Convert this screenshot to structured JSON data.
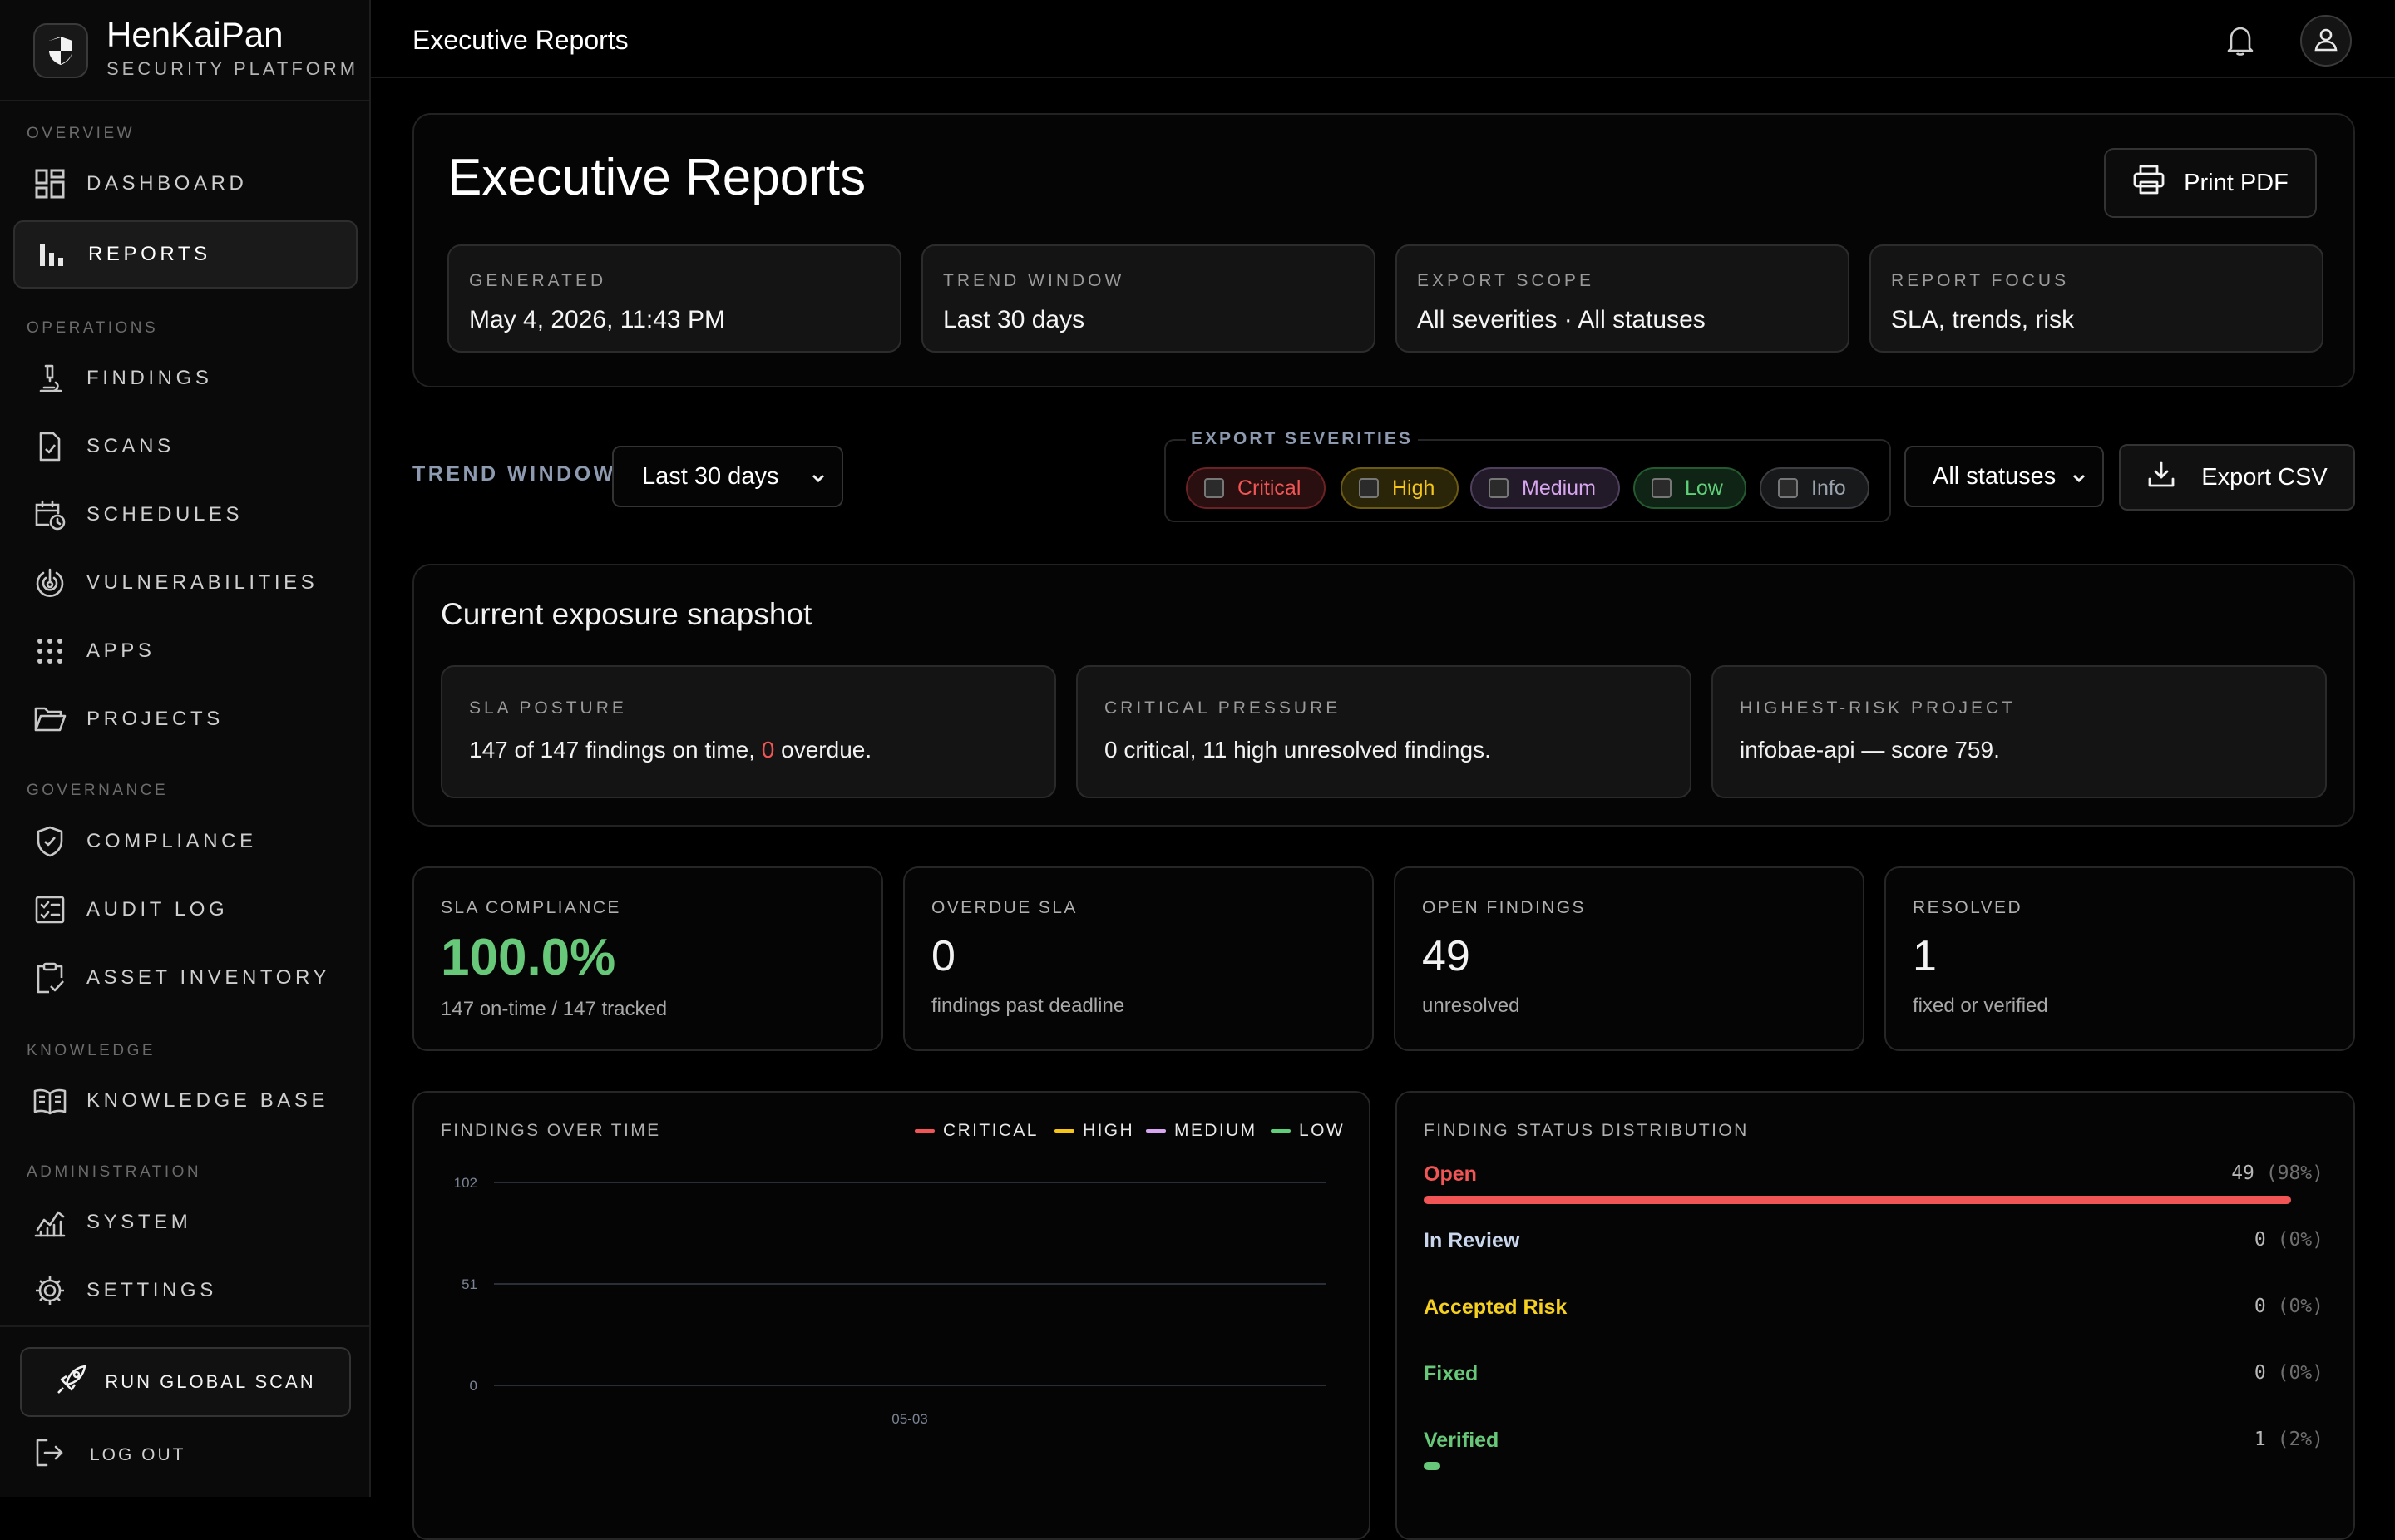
{
  "app": {
    "brand_name": "HenKaiPan",
    "brand_sub": "SECURITY PLATFORM",
    "page_title": "Executive Reports"
  },
  "sidebar": {
    "sections": {
      "overview": "OVERVIEW",
      "operations": "OPERATIONS",
      "governance": "GOVERNANCE",
      "knowledge": "KNOWLEDGE",
      "administration": "ADMINISTRATION"
    },
    "items": [
      {
        "label": "DASHBOARD",
        "icon": "grid-icon"
      },
      {
        "label": "REPORTS",
        "icon": "bar-chart-icon",
        "active": true
      },
      {
        "label": "FINDINGS",
        "icon": "microscope-icon"
      },
      {
        "label": "SCANS",
        "icon": "file-check-icon"
      },
      {
        "label": "SCHEDULES",
        "icon": "calendar-clock-icon"
      },
      {
        "label": "VULNERABILITIES",
        "icon": "radar-icon"
      },
      {
        "label": "APPS",
        "icon": "dots-grid-icon"
      },
      {
        "label": "PROJECTS",
        "icon": "folder-icon"
      },
      {
        "label": "COMPLIANCE",
        "icon": "shield-check-icon"
      },
      {
        "label": "AUDIT LOG",
        "icon": "checklist-icon"
      },
      {
        "label": "ASSET INVENTORY",
        "icon": "clipboard-check-icon"
      },
      {
        "label": "KNOWLEDGE BASE",
        "icon": "book-icon"
      },
      {
        "label": "SYSTEM",
        "icon": "activity-chart-icon"
      },
      {
        "label": "SETTINGS",
        "icon": "gear-icon"
      }
    ],
    "run_scan": "RUN GLOBAL SCAN",
    "logout": "LOG OUT"
  },
  "report": {
    "title": "Executive Reports",
    "print_label": "Print PDF",
    "meta": [
      {
        "label": "GENERATED",
        "value": "May 4, 2026, 11:43 PM"
      },
      {
        "label": "TREND WINDOW",
        "value": "Last 30 days"
      },
      {
        "label": "EXPORT SCOPE",
        "value": "All severities · All statuses"
      },
      {
        "label": "REPORT FOCUS",
        "value": "SLA, trends, risk"
      }
    ]
  },
  "controls": {
    "trend_label": "TREND WINDOW",
    "trend_value": "Last 30 days",
    "severities_label": "EXPORT SEVERITIES",
    "severities": [
      {
        "label": "Critical",
        "color": "#f25555",
        "checked": false
      },
      {
        "label": "High",
        "color": "#f5c518",
        "checked": false
      },
      {
        "label": "Medium",
        "color": "#d8a6f0",
        "checked": false
      },
      {
        "label": "Low",
        "color": "#5fd07a",
        "checked": false
      },
      {
        "label": "Info",
        "color": "#9aa3ad",
        "checked": false
      }
    ],
    "status_value": "All statuses",
    "export_label": "Export CSV"
  },
  "snapshot": {
    "title": "Current exposure snapshot",
    "sla": {
      "label": "SLA POSTURE",
      "pre": "147 of 147 findings on time, ",
      "overdue": "0",
      "post": " overdue."
    },
    "critical": {
      "label": "CRITICAL PRESSURE",
      "text": "0 critical, 11 high unresolved findings."
    },
    "project": {
      "label": "HIGHEST-RISK PROJECT",
      "text": "infobae-api — score 759."
    }
  },
  "kpis": [
    {
      "label": "SLA COMPLIANCE",
      "value": "100.0%",
      "sub": "147 on-time / 147 tracked"
    },
    {
      "label": "OVERDUE SLA",
      "value": "0",
      "sub": "findings past deadline"
    },
    {
      "label": "OPEN FINDINGS",
      "value": "49",
      "sub": "unresolved"
    },
    {
      "label": "RESOLVED",
      "value": "1",
      "sub": "fixed or verified"
    }
  ],
  "chart_data": [
    {
      "type": "line",
      "title": "FINDINGS OVER TIME",
      "x": [
        "05-03"
      ],
      "yticks": [
        "102",
        "51",
        "0"
      ],
      "ylim": [
        0,
        102
      ],
      "grid": true,
      "legend_position": "top-right",
      "series": [
        {
          "name": "CRITICAL",
          "color": "#f25555",
          "values": [
            0
          ]
        },
        {
          "name": "HIGH",
          "color": "#f5c518",
          "values": [
            0
          ]
        },
        {
          "name": "MEDIUM",
          "color": "#d8a6f0",
          "values": [
            0
          ]
        },
        {
          "name": "LOW",
          "color": "#5fd07a",
          "values": [
            0
          ]
        }
      ]
    },
    {
      "type": "bar",
      "title": "FINDING STATUS DISTRIBUTION",
      "categories": [
        "Open",
        "In Review",
        "Accepted Risk",
        "Fixed",
        "Verified"
      ],
      "values": [
        49,
        0,
        0,
        0,
        1
      ],
      "percents": [
        "(98%)",
        "(0%)",
        "(0%)",
        "(0%)",
        "(2%)"
      ],
      "fractions": [
        0.98,
        0,
        0,
        0,
        0.02
      ],
      "colors": [
        "#f25555",
        "#c9d6ec",
        "#f5d020",
        "#67c87a",
        "#67c87a"
      ]
    }
  ]
}
